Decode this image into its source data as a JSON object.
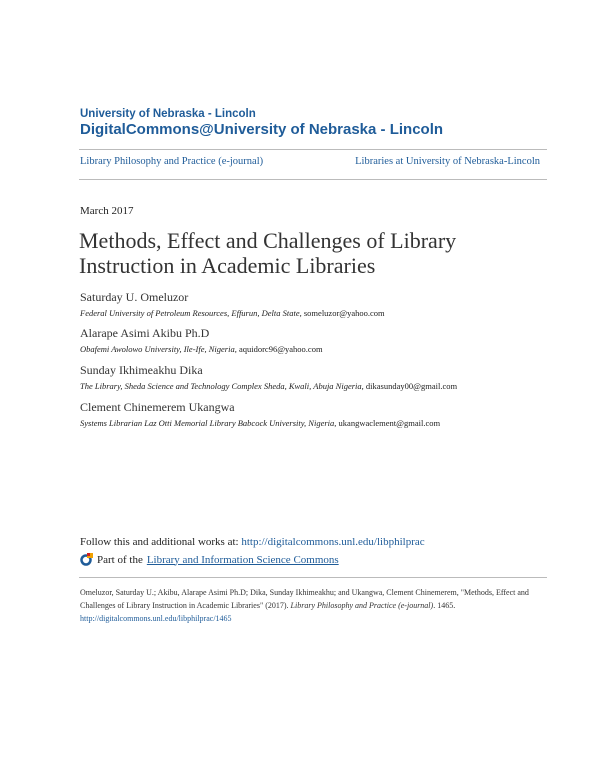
{
  "header": {
    "institution": "University of Nebraska - Lincoln",
    "repository": "DigitalCommons@University of Nebraska - Lincoln"
  },
  "nav": {
    "left": "Library Philosophy and Practice (e-journal)",
    "right": "Libraries at University of Nebraska-Lincoln"
  },
  "date": "March 2017",
  "title_lines": [
    "Methods, Effect and Challenges of Library",
    "Instruction in Academic Libraries"
  ],
  "authors": [
    {
      "name": "Saturday U. Omeluzor",
      "affiliation": "Federal University of Petroleum Resources, Effurun, Delta State",
      "email": ", someluzor@yahoo.com"
    },
    {
      "name": "Alarape Asimi Akibu Ph.D",
      "affiliation": "Obafemi Awolowo University, Ile-Ife, Nigeria",
      "email": ", aquidorc96@yahoo.com"
    },
    {
      "name": "Sunday Ikhimeakhu Dika",
      "affiliation": "The Library, Sheda Science and Technology Complex Sheda, Kwali, Abuja Nigeria",
      "email": ", dikasunday00@gmail.com"
    },
    {
      "name": "Clement Chinemerem Ukangwa",
      "affiliation": "Systems Librarian Laz Otti Memorial Library Babcock University, Nigeria",
      "email": ", ukangwaclement@gmail.com"
    }
  ],
  "follow": {
    "label": "Follow this and additional works at: ",
    "url": "http://digitalcommons.unl.edu/libphilprac"
  },
  "part_of": {
    "label": "Part of the ",
    "link": "Library and Information Science Commons"
  },
  "citation": {
    "text": "Omeluzor, Saturday U.; Akibu, Alarape Asimi Ph.D; Dika, Sunday Ikhimeakhu; and Ukangwa, Clement Chinemerem, \"Methods, Effect and Challenges of Library Instruction in Academic Libraries\" (2017). ",
    "journal": "Library Philosophy and Practice (e-journal)",
    "number": ". 1465.",
    "url": "http://digitalcommons.unl.edu/libphilprac/1465"
  },
  "colors": {
    "link": "#1f5c99"
  }
}
